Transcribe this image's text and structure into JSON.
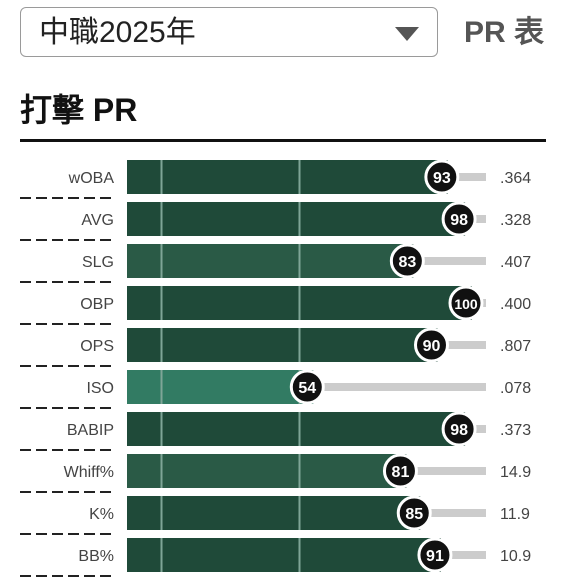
{
  "header": {
    "season_select": {
      "value": "中職2025年",
      "icon": "chevron-down-icon"
    },
    "pr_title": "PR 表"
  },
  "section": {
    "title": "打擊 PR"
  },
  "colors": {
    "bar_dark": "#1f4a39",
    "bar_mid": "#2a5a46",
    "bar_light": "#327b63",
    "track": "#cccccc",
    "badge": "#111111"
  },
  "chart_data": {
    "type": "bar",
    "orientation": "horizontal",
    "xlim": [
      0,
      100
    ],
    "categories": [
      "wOBA",
      "AVG",
      "SLG",
      "OBP",
      "OPS",
      "ISO",
      "BABIP",
      "Whiff%",
      "K%",
      "BB%"
    ],
    "percentile": [
      93,
      98,
      83,
      100,
      90,
      54,
      98,
      81,
      85,
      91
    ],
    "value_labels": [
      ".364",
      ".328",
      ".407",
      ".400",
      ".807",
      ".078",
      ".373",
      "14.9",
      "11.9",
      "10.9"
    ]
  }
}
